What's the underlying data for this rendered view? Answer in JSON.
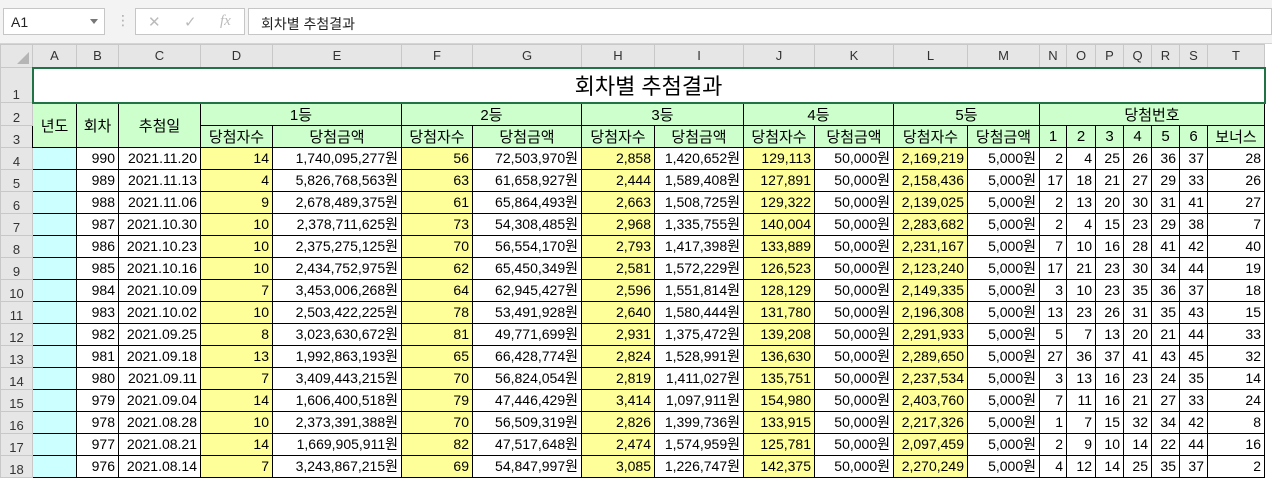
{
  "formula_bar": {
    "name_box": "A1",
    "cancel_icon": "✕",
    "enter_icon": "✓",
    "fx_icon": "fx",
    "formula": "회차별 추첨결과"
  },
  "columns": [
    "A",
    "B",
    "C",
    "D",
    "E",
    "F",
    "G",
    "H",
    "I",
    "J",
    "K",
    "L",
    "M",
    "N",
    "O",
    "P",
    "Q",
    "R",
    "S",
    "T"
  ],
  "title": "회차별 추첨결과",
  "headers": {
    "year": "년도",
    "round": "회차",
    "date": "추첨일",
    "groups": [
      "1등",
      "2등",
      "3등",
      "4등",
      "5등"
    ],
    "count": "당첨자수",
    "amount": "당첨금액",
    "numbers": "당첨번호",
    "number_labels": [
      "1",
      "2",
      "3",
      "4",
      "5",
      "6",
      "보너스"
    ]
  },
  "colors": {
    "header": "#ccffcc",
    "count_fill": "#ffff99",
    "year_fill": "#ccffff",
    "selection": "#217346"
  },
  "rows": [
    [
      "990",
      "2021.11.20",
      "14",
      "1,740,095,277원",
      "56",
      "72,503,970원",
      "2,858",
      "1,420,652원",
      "129,113",
      "50,000원",
      "2,169,219",
      "5,000원",
      "2",
      "4",
      "25",
      "26",
      "36",
      "37",
      "28"
    ],
    [
      "989",
      "2021.11.13",
      "4",
      "5,826,768,563원",
      "63",
      "61,658,927원",
      "2,444",
      "1,589,408원",
      "127,891",
      "50,000원",
      "2,158,436",
      "5,000원",
      "17",
      "18",
      "21",
      "27",
      "29",
      "33",
      "26"
    ],
    [
      "988",
      "2021.11.06",
      "9",
      "2,678,489,375원",
      "61",
      "65,864,493원",
      "2,663",
      "1,508,725원",
      "129,322",
      "50,000원",
      "2,139,025",
      "5,000원",
      "2",
      "13",
      "20",
      "30",
      "31",
      "41",
      "27"
    ],
    [
      "987",
      "2021.10.30",
      "10",
      "2,378,711,625원",
      "73",
      "54,308,485원",
      "2,968",
      "1,335,755원",
      "140,004",
      "50,000원",
      "2,283,682",
      "5,000원",
      "2",
      "4",
      "15",
      "23",
      "29",
      "38",
      "7"
    ],
    [
      "986",
      "2021.10.23",
      "10",
      "2,375,275,125원",
      "70",
      "56,554,170원",
      "2,793",
      "1,417,398원",
      "133,889",
      "50,000원",
      "2,231,167",
      "5,000원",
      "7",
      "10",
      "16",
      "28",
      "41",
      "42",
      "40"
    ],
    [
      "985",
      "2021.10.16",
      "10",
      "2,434,752,975원",
      "62",
      "65,450,349원",
      "2,581",
      "1,572,229원",
      "126,523",
      "50,000원",
      "2,123,240",
      "5,000원",
      "17",
      "21",
      "23",
      "30",
      "34",
      "44",
      "19"
    ],
    [
      "984",
      "2021.10.09",
      "7",
      "3,453,006,268원",
      "64",
      "62,945,427원",
      "2,596",
      "1,551,814원",
      "128,129",
      "50,000원",
      "2,149,335",
      "5,000원",
      "3",
      "10",
      "23",
      "35",
      "36",
      "37",
      "18"
    ],
    [
      "983",
      "2021.10.02",
      "10",
      "2,503,422,225원",
      "78",
      "53,491,928원",
      "2,640",
      "1,580,444원",
      "131,780",
      "50,000원",
      "2,196,308",
      "5,000원",
      "13",
      "23",
      "26",
      "31",
      "35",
      "43",
      "15"
    ],
    [
      "982",
      "2021.09.25",
      "8",
      "3,023,630,672원",
      "81",
      "49,771,699원",
      "2,931",
      "1,375,472원",
      "139,208",
      "50,000원",
      "2,291,933",
      "5,000원",
      "5",
      "7",
      "13",
      "20",
      "21",
      "44",
      "33"
    ],
    [
      "981",
      "2021.09.18",
      "13",
      "1,992,863,193원",
      "65",
      "66,428,774원",
      "2,824",
      "1,528,991원",
      "136,630",
      "50,000원",
      "2,289,650",
      "5,000원",
      "27",
      "36",
      "37",
      "41",
      "43",
      "45",
      "32"
    ],
    [
      "980",
      "2021.09.11",
      "7",
      "3,409,443,215원",
      "70",
      "56,824,054원",
      "2,819",
      "1,411,027원",
      "135,751",
      "50,000원",
      "2,237,534",
      "5,000원",
      "3",
      "13",
      "16",
      "23",
      "24",
      "35",
      "14"
    ],
    [
      "979",
      "2021.09.04",
      "14",
      "1,606,400,518원",
      "79",
      "47,446,429원",
      "3,414",
      "1,097,911원",
      "154,980",
      "50,000원",
      "2,403,760",
      "5,000원",
      "7",
      "11",
      "16",
      "21",
      "27",
      "33",
      "24"
    ],
    [
      "978",
      "2021.08.28",
      "10",
      "2,373,391,388원",
      "70",
      "56,509,319원",
      "2,826",
      "1,399,736원",
      "133,915",
      "50,000원",
      "2,217,326",
      "5,000원",
      "1",
      "7",
      "15",
      "32",
      "34",
      "42",
      "8"
    ],
    [
      "977",
      "2021.08.21",
      "14",
      "1,669,905,911원",
      "82",
      "47,517,648원",
      "2,474",
      "1,574,959원",
      "125,781",
      "50,000원",
      "2,097,459",
      "5,000원",
      "2",
      "9",
      "10",
      "14",
      "22",
      "44",
      "16"
    ],
    [
      "976",
      "2021.08.14",
      "7",
      "3,243,867,215원",
      "69",
      "54,847,997원",
      "3,085",
      "1,226,747원",
      "142,375",
      "50,000원",
      "2,270,249",
      "5,000원",
      "4",
      "12",
      "14",
      "25",
      "35",
      "37",
      "2"
    ]
  ]
}
